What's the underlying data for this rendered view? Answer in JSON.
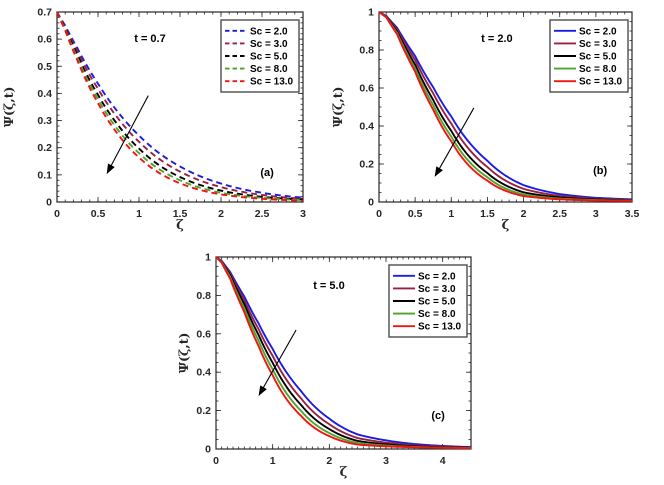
{
  "page": {
    "background": "#ffffff"
  },
  "figure": {
    "panels_order": [
      "a",
      "b",
      "c"
    ],
    "axis_color": "#262626",
    "tick_label_color": "#262626",
    "legend_border_color": "#4d4d4d",
    "series_colors": {
      "sc_2": "#1c1ce0",
      "sc_3": "#9a2040",
      "sc_5": "#000000",
      "sc_8": "#4ea32c",
      "sc_13": "#ee1512"
    }
  },
  "chart_data": [
    {
      "id": "a",
      "type": "line",
      "title": "t = 0.7",
      "panel_label": "(a)",
      "xlabel": "ζ",
      "ylabel": "Ψ(ζ,t)",
      "xlim": [
        0,
        3
      ],
      "ylim": [
        0,
        0.7
      ],
      "xticks": [
        0,
        0.5,
        1,
        1.5,
        2,
        2.5,
        3
      ],
      "xtick_labels": [
        "0",
        "0.5",
        "1",
        "1.5",
        "2",
        "2.5",
        "3"
      ],
      "yticks": [
        0,
        0.1,
        0.2,
        0.3,
        0.4,
        0.5,
        0.6,
        0.7
      ],
      "ytick_labels": [
        "0",
        "0.1",
        "0.2",
        "0.3",
        "0.4",
        "0.5",
        "0.6",
        "0.7"
      ],
      "x_minor_step": 0.1,
      "y_minor_step": 0.02,
      "grid": false,
      "line_style": "dashed",
      "legend_position": "northeast",
      "x": [
        0,
        0.1,
        0.25,
        0.5,
        0.75,
        1,
        1.5,
        2,
        2.5,
        3
      ],
      "series": [
        {
          "name": "Sc = 2.0",
          "color": "#1c1ce0",
          "values": [
            0.7,
            0.65,
            0.566,
            0.436,
            0.329,
            0.245,
            0.131,
            0.068,
            0.034,
            0.016
          ]
        },
        {
          "name": "Sc = 3.0",
          "color": "#9a2040",
          "values": [
            0.7,
            0.645,
            0.554,
            0.417,
            0.306,
            0.222,
            0.112,
            0.055,
            0.026,
            0.012
          ]
        },
        {
          "name": "Sc = 5.0",
          "color": "#000000",
          "values": [
            0.7,
            0.64,
            0.541,
            0.395,
            0.281,
            0.197,
            0.092,
            0.042,
            0.019,
            0.009
          ]
        },
        {
          "name": "Sc = 8.0",
          "color": "#4ea32c",
          "values": [
            0.7,
            0.636,
            0.531,
            0.379,
            0.263,
            0.18,
            0.08,
            0.034,
            0.015,
            0.007
          ]
        },
        {
          "name": "Sc = 13.0",
          "color": "#ee1512",
          "values": [
            0.7,
            0.632,
            0.521,
            0.364,
            0.247,
            0.164,
            0.069,
            0.028,
            0.012,
            0.005
          ]
        }
      ],
      "annotations": {
        "time_label_pos": [
          0.378,
          0.137
        ],
        "panel_label_pos": [
          0.854,
          0.842
        ],
        "arrow": {
          "from": [
            0.371,
            0.44
          ],
          "to": [
            0.202,
            0.853
          ]
        }
      }
    },
    {
      "id": "b",
      "type": "line",
      "title": "t = 2.0",
      "panel_label": "(b)",
      "xlabel": "ζ",
      "ylabel": "Ψ(ζ,t)",
      "xlim": [
        0,
        3.5
      ],
      "ylim": [
        0,
        1
      ],
      "xticks": [
        0,
        0.5,
        1,
        1.5,
        2,
        2.5,
        3,
        3.5
      ],
      "xtick_labels": [
        "0",
        "0.5",
        "1",
        "1.5",
        "2",
        "2.5",
        "3",
        "3.5"
      ],
      "yticks": [
        0,
        0.2,
        0.4,
        0.6,
        0.8,
        1
      ],
      "ytick_labels": [
        "0",
        "0.2",
        "0.4",
        "0.6",
        "0.8",
        "1"
      ],
      "x_minor_step": 0.1,
      "y_minor_step": 0.05,
      "grid": false,
      "line_style": "solid",
      "legend_position": "northeast",
      "x": [
        0,
        0.1,
        0.25,
        0.5,
        0.75,
        1,
        1.5,
        2,
        2.5,
        3,
        3.5
      ],
      "series": [
        {
          "name": "Sc = 2.0",
          "color": "#1c1ce0",
          "values": [
            1.0,
            0.98,
            0.917,
            0.768,
            0.604,
            0.45,
            0.217,
            0.089,
            0.042,
            0.022,
            0.014
          ]
        },
        {
          "name": "Sc = 3.0",
          "color": "#9a2040",
          "values": [
            1.0,
            0.978,
            0.908,
            0.747,
            0.572,
            0.413,
            0.184,
            0.069,
            0.032,
            0.017,
            0.011
          ]
        },
        {
          "name": "Sc = 5.0",
          "color": "#000000",
          "values": [
            1.0,
            0.976,
            0.898,
            0.723,
            0.537,
            0.374,
            0.152,
            0.051,
            0.024,
            0.013,
            0.009
          ]
        },
        {
          "name": "Sc = 8.0",
          "color": "#4ea32c",
          "values": [
            1.0,
            0.974,
            0.89,
            0.703,
            0.51,
            0.344,
            0.13,
            0.039,
            0.018,
            0.01,
            0.007
          ]
        },
        {
          "name": "Sc = 13.0",
          "color": "#ee1512",
          "values": [
            1.0,
            0.972,
            0.883,
            0.686,
            0.486,
            0.319,
            0.112,
            0.031,
            0.014,
            0.008,
            0.006
          ]
        }
      ],
      "annotations": {
        "time_label_pos": [
          0.466,
          0.137
        ],
        "panel_label_pos": [
          0.874,
          0.832
        ],
        "arrow": {
          "from": [
            0.375,
            0.505
          ],
          "to": [
            0.22,
            0.868
          ]
        }
      }
    },
    {
      "id": "c",
      "type": "line",
      "title": "t = 5.0",
      "panel_label": "(c)",
      "xlabel": "ζ",
      "ylabel": "Ψ(ζ,t)",
      "xlim": [
        0,
        4.5
      ],
      "ylim": [
        0,
        1
      ],
      "xticks": [
        0,
        1,
        2,
        3,
        4
      ],
      "xtick_labels": [
        "0",
        "1",
        "2",
        "3",
        "4"
      ],
      "yticks": [
        0,
        0.2,
        0.4,
        0.6,
        0.8,
        1
      ],
      "ytick_labels": [
        "0",
        "0.2",
        "0.4",
        "0.6",
        "0.8",
        "1"
      ],
      "x_minor_step": 0.1,
      "y_minor_step": 0.05,
      "grid": false,
      "line_style": "solid",
      "legend_position": "northeast",
      "x": [
        0,
        0.1,
        0.25,
        0.5,
        0.75,
        1,
        1.5,
        2,
        2.5,
        3,
        3.5,
        4,
        4.5
      ],
      "series": [
        {
          "name": "Sc = 2.0",
          "color": "#1c1ce0",
          "values": [
            1.0,
            0.98,
            0.922,
            0.794,
            0.655,
            0.521,
            0.302,
            0.158,
            0.076,
            0.045,
            0.026,
            0.016,
            0.01
          ]
        },
        {
          "name": "Sc = 3.0",
          "color": "#9a2040",
          "values": [
            1.0,
            0.977,
            0.914,
            0.774,
            0.625,
            0.485,
            0.264,
            0.129,
            0.057,
            0.033,
            0.019,
            0.012,
            0.008
          ]
        },
        {
          "name": "Sc = 5.0",
          "color": "#000000",
          "values": [
            1.0,
            0.975,
            0.905,
            0.754,
            0.595,
            0.449,
            0.23,
            0.104,
            0.042,
            0.024,
            0.014,
            0.009,
            0.006
          ]
        },
        {
          "name": "Sc = 8.0",
          "color": "#4ea32c",
          "values": [
            1.0,
            0.973,
            0.896,
            0.733,
            0.565,
            0.415,
            0.199,
            0.083,
            0.031,
            0.018,
            0.011,
            0.007,
            0.005
          ]
        },
        {
          "name": "Sc = 13.0",
          "color": "#ee1512",
          "values": [
            1.0,
            0.97,
            0.887,
            0.713,
            0.537,
            0.384,
            0.173,
            0.067,
            0.023,
            0.014,
            0.009,
            0.006,
            0.004
          ]
        }
      ],
      "annotations": {
        "time_label_pos": [
          0.443,
          0.146
        ],
        "panel_label_pos": [
          0.871,
          0.823
        ],
        "arrow": {
          "from": [
            0.314,
            0.38
          ],
          "to": [
            0.167,
            0.724
          ]
        }
      }
    }
  ]
}
